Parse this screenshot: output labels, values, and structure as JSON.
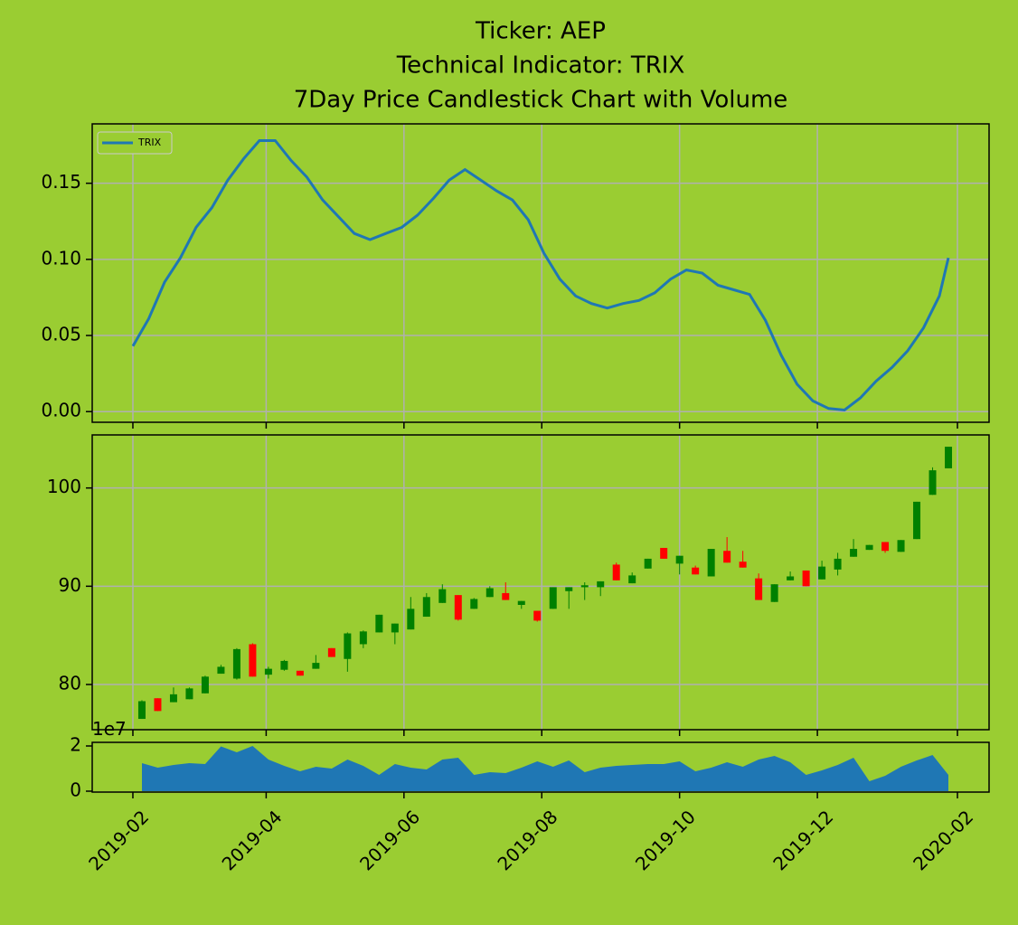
{
  "title": [
    "Ticker: AEP",
    "Technical Indicator: TRIX",
    "7Day Price Candlestick Chart with Volume"
  ],
  "chart_data": [
    {
      "type": "line",
      "grid": true,
      "legend": "upper left",
      "ylim": [
        -0.007,
        0.189
      ],
      "yticks": [
        {
          "value": 0,
          "label": "0.00"
        },
        {
          "value": 0.05,
          "label": "0.05"
        },
        {
          "value": 0.1,
          "label": "0.10"
        },
        {
          "value": 0.15,
          "label": "0.15"
        }
      ],
      "series": [
        {
          "name": "TRIX",
          "color": "#1f77b4",
          "x": [
            "2019-02-01",
            "2019-02-08",
            "2019-02-15",
            "2019-02-22",
            "2019-03-01",
            "2019-03-08",
            "2019-03-15",
            "2019-03-22",
            "2019-03-29",
            "2019-04-05",
            "2019-04-12",
            "2019-04-19",
            "2019-04-26",
            "2019-05-03",
            "2019-05-10",
            "2019-05-17",
            "2019-05-24",
            "2019-05-31",
            "2019-06-07",
            "2019-06-14",
            "2019-06-21",
            "2019-06-28",
            "2019-07-05",
            "2019-07-12",
            "2019-07-19",
            "2019-07-26",
            "2019-08-02",
            "2019-08-09",
            "2019-08-16",
            "2019-08-23",
            "2019-08-30",
            "2019-09-06",
            "2019-09-13",
            "2019-09-20",
            "2019-09-27",
            "2019-10-04",
            "2019-10-11",
            "2019-10-18",
            "2019-10-25",
            "2019-11-01",
            "2019-11-08",
            "2019-11-15",
            "2019-11-22",
            "2019-11-29",
            "2019-12-06",
            "2019-12-13",
            "2019-12-20",
            "2019-12-27",
            "2020-01-03",
            "2020-01-10",
            "2020-01-17",
            "2020-01-24",
            "2020-01-28"
          ],
          "values": [
            0.043,
            0.061,
            0.085,
            0.101,
            0.121,
            0.134,
            0.152,
            0.166,
            0.178,
            0.178,
            0.165,
            0.154,
            0.139,
            0.128,
            0.117,
            0.113,
            0.117,
            0.121,
            0.129,
            0.14,
            0.152,
            0.159,
            0.152,
            0.145,
            0.139,
            0.126,
            0.104,
            0.087,
            0.076,
            0.071,
            0.068,
            0.071,
            0.073,
            0.078,
            0.087,
            0.093,
            0.091,
            0.083,
            0.08,
            0.077,
            0.06,
            0.037,
            0.018,
            0.007,
            0.002,
            0.001,
            0.009,
            0.02,
            0.029,
            0.04,
            0.055,
            0.076,
            0.101
          ]
        }
      ]
    },
    {
      "type": "candlestick",
      "grid": true,
      "up_color": "green",
      "down_color": "red",
      "ylim": [
        75.4,
        105.4
      ],
      "yticks": [
        80,
        90,
        100
      ],
      "x": [
        "2019-02-05",
        "2019-02-12",
        "2019-02-19",
        "2019-02-26",
        "2019-03-05",
        "2019-03-12",
        "2019-03-19",
        "2019-03-26",
        "2019-04-02",
        "2019-04-09",
        "2019-04-16",
        "2019-04-23",
        "2019-04-30",
        "2019-05-07",
        "2019-05-14",
        "2019-05-21",
        "2019-05-28",
        "2019-06-04",
        "2019-06-11",
        "2019-06-18",
        "2019-06-25",
        "2019-07-02",
        "2019-07-09",
        "2019-07-16",
        "2019-07-23",
        "2019-07-30",
        "2019-08-06",
        "2019-08-13",
        "2019-08-20",
        "2019-08-27",
        "2019-09-03",
        "2019-09-10",
        "2019-09-17",
        "2019-09-24",
        "2019-10-01",
        "2019-10-08",
        "2019-10-15",
        "2019-10-22",
        "2019-10-29",
        "2019-11-05",
        "2019-11-12",
        "2019-11-19",
        "2019-11-26",
        "2019-12-03",
        "2019-12-10",
        "2019-12-17",
        "2019-12-24",
        "2019-12-31",
        "2020-01-07",
        "2020-01-14",
        "2020-01-21",
        "2020-01-28"
      ],
      "open": [
        76.5,
        78.6,
        78.2,
        78.5,
        79.1,
        81.1,
        80.6,
        84.1,
        81.0,
        81.5,
        81.4,
        81.6,
        83.7,
        82.6,
        84.1,
        85.3,
        85.3,
        85.6,
        86.9,
        88.3,
        89.1,
        87.7,
        88.9,
        89.3,
        88.1,
        87.5,
        87.7,
        89.5,
        89.9,
        89.9,
        92.2,
        90.3,
        91.8,
        93.9,
        92.3,
        91.9,
        91.0,
        93.6,
        92.5,
        90.8,
        88.4,
        90.6,
        91.6,
        90.7,
        91.7,
        93.0,
        93.7,
        94.5,
        93.5,
        94.8,
        99.3,
        102.0
      ],
      "high": [
        78.4,
        78.6,
        79.7,
        79.7,
        80.9,
        82.0,
        83.7,
        84.2,
        81.8,
        82.5,
        81.4,
        83.0,
        83.7,
        85.3,
        85.5,
        87.1,
        86.2,
        88.9,
        89.3,
        90.2,
        89.1,
        88.8,
        90.0,
        90.4,
        88.5,
        87.5,
        89.9,
        89.9,
        90.4,
        90.5,
        92.4,
        91.4,
        92.8,
        93.9,
        93.1,
        92.1,
        93.8,
        95.0,
        93.6,
        91.3,
        90.2,
        91.5,
        91.6,
        92.6,
        93.4,
        94.8,
        94.2,
        94.5,
        94.7,
        98.6,
        102.1,
        104.2
      ],
      "low": [
        76.5,
        77.3,
        78.2,
        78.5,
        79.1,
        81.1,
        80.5,
        80.8,
        80.6,
        81.4,
        80.9,
        81.6,
        82.8,
        81.3,
        83.7,
        85.3,
        84.1,
        85.6,
        86.9,
        88.3,
        86.5,
        87.7,
        88.9,
        88.6,
        87.7,
        86.4,
        87.7,
        87.7,
        88.6,
        89.0,
        90.6,
        90.3,
        91.8,
        92.8,
        91.2,
        91.2,
        91.0,
        92.4,
        91.9,
        88.6,
        88.4,
        90.6,
        90.0,
        90.7,
        91.1,
        93.0,
        93.7,
        93.4,
        93.5,
        94.8,
        99.3,
        102.0
      ],
      "close": [
        78.3,
        77.3,
        79.0,
        79.6,
        80.8,
        81.8,
        83.6,
        80.8,
        81.6,
        82.4,
        80.9,
        82.2,
        82.8,
        85.2,
        85.4,
        87.1,
        86.2,
        87.7,
        88.9,
        89.7,
        86.6,
        88.7,
        89.8,
        88.6,
        88.5,
        86.5,
        89.9,
        89.9,
        90.1,
        90.5,
        90.6,
        91.1,
        92.8,
        92.8,
        93.1,
        91.2,
        93.8,
        92.4,
        91.9,
        88.6,
        90.2,
        91.0,
        90.0,
        92.0,
        92.8,
        93.8,
        94.2,
        93.6,
        94.7,
        98.6,
        101.8,
        104.2
      ]
    },
    {
      "type": "area",
      "grid": false,
      "color": "#1f77b4",
      "y_offset_label": "1e7",
      "ylim": [
        -400000,
        21600000
      ],
      "yticks": [
        0,
        {
          "value": 20000000,
          "label": "2"
        }
      ],
      "xlim": [
        "2019-01-14",
        "2020-02-15"
      ],
      "xticks": [
        "2019-02",
        "2019-04",
        "2019-06",
        "2019-08",
        "2019-10",
        "2019-12",
        "2020-02"
      ],
      "x": [
        "2019-02-05",
        "2019-02-12",
        "2019-02-19",
        "2019-02-26",
        "2019-03-05",
        "2019-03-12",
        "2019-03-19",
        "2019-03-26",
        "2019-04-02",
        "2019-04-09",
        "2019-04-16",
        "2019-04-23",
        "2019-04-30",
        "2019-05-07",
        "2019-05-14",
        "2019-05-21",
        "2019-05-28",
        "2019-06-04",
        "2019-06-11",
        "2019-06-18",
        "2019-06-25",
        "2019-07-02",
        "2019-07-09",
        "2019-07-16",
        "2019-07-23",
        "2019-07-30",
        "2019-08-06",
        "2019-08-13",
        "2019-08-20",
        "2019-08-27",
        "2019-09-03",
        "2019-09-10",
        "2019-09-17",
        "2019-09-24",
        "2019-10-01",
        "2019-10-08",
        "2019-10-15",
        "2019-10-22",
        "2019-10-29",
        "2019-11-05",
        "2019-11-12",
        "2019-11-19",
        "2019-11-26",
        "2019-12-03",
        "2019-12-10",
        "2019-12-17",
        "2019-12-24",
        "2019-12-31",
        "2020-01-07",
        "2020-01-14",
        "2020-01-21",
        "2020-01-28"
      ],
      "values": [
        12400000,
        10400000,
        11600000,
        12400000,
        12000000,
        19800000,
        17200000,
        20000000,
        14000000,
        11200000,
        8800000,
        10800000,
        10000000,
        14000000,
        11200000,
        7200000,
        12000000,
        10400000,
        9600000,
        14000000,
        14800000,
        7200000,
        8400000,
        8000000,
        10400000,
        13200000,
        10800000,
        13600000,
        8400000,
        10400000,
        11200000,
        11600000,
        12000000,
        12000000,
        13200000,
        8800000,
        10400000,
        12800000,
        10800000,
        14000000,
        15600000,
        12800000,
        7200000,
        9200000,
        11600000,
        14800000,
        4400000,
        6800000,
        10800000,
        13600000,
        16000000,
        7200000
      ]
    }
  ]
}
